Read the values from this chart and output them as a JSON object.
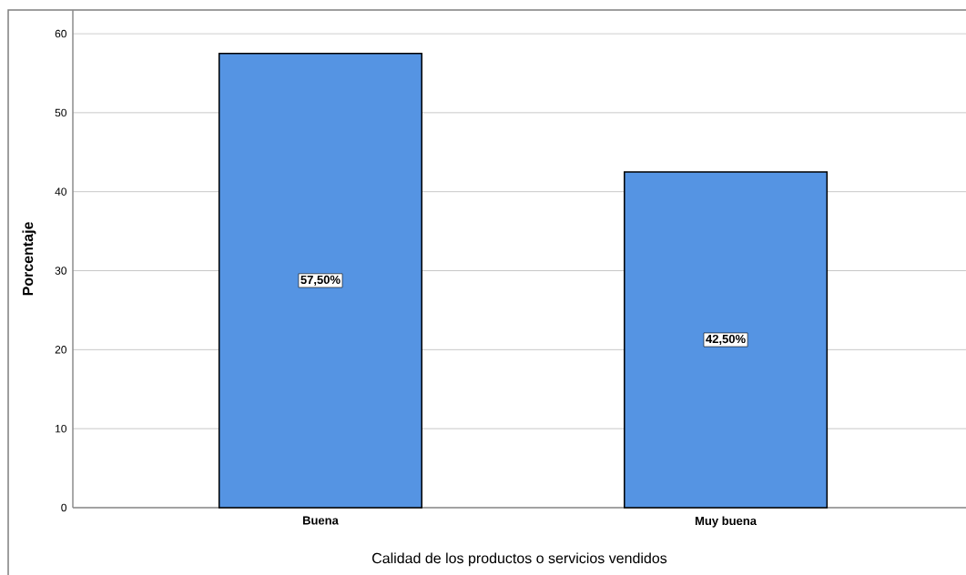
{
  "chart_data": {
    "type": "bar",
    "xlabel": "Calidad de los productos o servicios vendidos",
    "ylabel": "Porcentaje",
    "categories": [
      "Buena",
      "Muy buena"
    ],
    "values": [
      57.5,
      42.5
    ],
    "value_labels": [
      "57,50%",
      "42,50%"
    ],
    "color": "#5594e3",
    "ylim": [
      0,
      63
    ],
    "yticks": [
      0,
      10,
      20,
      30,
      40,
      50,
      60
    ],
    "grid": "y"
  }
}
